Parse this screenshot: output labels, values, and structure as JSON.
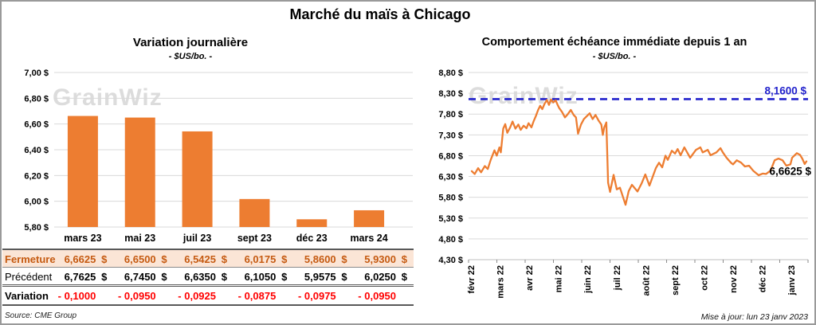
{
  "page_title": "Marché du maïs à Chicago",
  "watermark": "GrainWiz",
  "source": "Source: CME Group",
  "updated": "Mise à jour: lun 23 janv 2023",
  "colors": {
    "orange": "#ED7D31",
    "ref_blue": "#2222CC",
    "close_row_bg": "#FBE5D6",
    "close_row_text": "#C55A11",
    "variation_red": "#FF0000",
    "gridline": "#D9D9D9"
  },
  "left_chart": {
    "title": "Variation journalière",
    "subtitle": "- $US/bo. -",
    "table": {
      "rows": [
        {
          "key": "fermeture",
          "label": "Fermeture",
          "values": [
            "6,6625",
            "6,6500",
            "6,5425",
            "6,0175",
            "5,8600",
            "5,9300"
          ],
          "suffix": "$"
        },
        {
          "key": "precedent",
          "label": "Précédent",
          "values": [
            "6,7625",
            "6,7450",
            "6,6350",
            "6,1050",
            "5,9575",
            "6,0250"
          ],
          "suffix": "$"
        },
        {
          "key": "variation",
          "label": "Variation",
          "values": [
            "- 0,1000",
            "- 0,0950",
            "- 0,0925",
            "- 0,0875",
            "- 0,0975",
            "- 0,0950"
          ],
          "suffix": ""
        }
      ]
    }
  },
  "right_chart": {
    "title": "Comportement échéance immédiate depuis 1 an",
    "subtitle": "- $US/bo. -",
    "ref_line_label": "8,1600 $",
    "last_label": "6,6625 $"
  },
  "chart_data": [
    {
      "type": "bar",
      "title": "Variation journalière",
      "ylabel": "$US/bo.",
      "categories": [
        "mars 23",
        "mai 23",
        "juil 23",
        "sept 23",
        "déc 23",
        "mars 24"
      ],
      "values": [
        6.6625,
        6.65,
        6.5425,
        6.0175,
        5.86,
        5.93
      ],
      "ylim": [
        5.8,
        7.0
      ],
      "ytick_step": 0.2,
      "ytick_labels": [
        "7,00 $",
        "6,80 $",
        "6,60 $",
        "6,40 $",
        "6,20 $",
        "6,00 $",
        "5,80 $"
      ],
      "grid": true,
      "bar_color": "#ED7D31"
    },
    {
      "type": "line",
      "title": "Comportement échéance immédiate depuis 1 an",
      "ylabel": "$US/bo.",
      "x_tick_labels": [
        "févr 22",
        "mars 22",
        "avr 22",
        "mai 22",
        "juin 22",
        "juil 22",
        "août 22",
        "sept 22",
        "oct 22",
        "nov 22",
        "déc 22",
        "janv 23"
      ],
      "ylim": [
        4.3,
        8.8
      ],
      "ytick_step": 0.5,
      "ytick_labels": [
        "8,80 $",
        "8,30 $",
        "7,80 $",
        "7,30 $",
        "6,80 $",
        "6,30 $",
        "5,80 $",
        "5,30 $",
        "4,80 $",
        "4,30 $"
      ],
      "grid": true,
      "line_color": "#ED7D31",
      "ref_line": {
        "value": 8.16,
        "label": "8,1600 $",
        "color": "#2222CC",
        "style": "dashed"
      },
      "last_value": {
        "value": 6.6625,
        "label": "6,6625 $"
      },
      "series": [
        {
          "name": "échéance immédiate",
          "points": [
            [
              0,
              6.43
            ],
            [
              0.1,
              6.36
            ],
            [
              0.22,
              6.5
            ],
            [
              0.32,
              6.4
            ],
            [
              0.45,
              6.55
            ],
            [
              0.55,
              6.48
            ],
            [
              0.65,
              6.7
            ],
            [
              0.78,
              6.93
            ],
            [
              0.86,
              6.8
            ],
            [
              0.95,
              7.0
            ],
            [
              1.0,
              6.88
            ],
            [
              1.08,
              7.45
            ],
            [
              1.15,
              7.56
            ],
            [
              1.22,
              7.35
            ],
            [
              1.32,
              7.48
            ],
            [
              1.4,
              7.62
            ],
            [
              1.5,
              7.45
            ],
            [
              1.6,
              7.55
            ],
            [
              1.68,
              7.42
            ],
            [
              1.78,
              7.52
            ],
            [
              1.88,
              7.46
            ],
            [
              1.95,
              7.58
            ],
            [
              2.05,
              7.48
            ],
            [
              2.12,
              7.62
            ],
            [
              2.2,
              7.75
            ],
            [
              2.28,
              7.9
            ],
            [
              2.35,
              8.0
            ],
            [
              2.42,
              7.92
            ],
            [
              2.5,
              8.05
            ],
            [
              2.58,
              8.14
            ],
            [
              2.65,
              8.02
            ],
            [
              2.72,
              8.15
            ],
            [
              2.8,
              8.08
            ],
            [
              2.88,
              8.13
            ],
            [
              2.95,
              8.02
            ],
            [
              3.0,
              7.95
            ],
            [
              3.1,
              7.85
            ],
            [
              3.2,
              7.72
            ],
            [
              3.3,
              7.8
            ],
            [
              3.4,
              7.9
            ],
            [
              3.5,
              7.78
            ],
            [
              3.58,
              7.72
            ],
            [
              3.65,
              7.33
            ],
            [
              3.75,
              7.55
            ],
            [
              3.85,
              7.68
            ],
            [
              3.95,
              7.75
            ],
            [
              4.05,
              7.82
            ],
            [
              4.15,
              7.68
            ],
            [
              4.25,
              7.78
            ],
            [
              4.35,
              7.65
            ],
            [
              4.45,
              7.55
            ],
            [
              4.5,
              7.3
            ],
            [
              4.55,
              7.48
            ],
            [
              4.62,
              7.6
            ],
            [
              4.68,
              6.15
            ],
            [
              4.75,
              5.93
            ],
            [
              4.87,
              6.34
            ],
            [
              4.98,
              5.99
            ],
            [
              5.09,
              6.03
            ],
            [
              5.28,
              5.62
            ],
            [
              5.39,
              5.95
            ],
            [
              5.5,
              6.1
            ],
            [
              5.69,
              5.94
            ],
            [
              5.83,
              6.13
            ],
            [
              5.96,
              6.35
            ],
            [
              6.1,
              6.08
            ],
            [
              6.32,
              6.5
            ],
            [
              6.43,
              6.63
            ],
            [
              6.54,
              6.52
            ],
            [
              6.65,
              6.8
            ],
            [
              6.73,
              6.7
            ],
            [
              6.87,
              6.92
            ],
            [
              6.98,
              6.85
            ],
            [
              7.07,
              6.96
            ],
            [
              7.17,
              6.81
            ],
            [
              7.3,
              7.0
            ],
            [
              7.5,
              6.75
            ],
            [
              7.7,
              6.94
            ],
            [
              7.85,
              7.0
            ],
            [
              7.93,
              6.88
            ],
            [
              8.1,
              6.94
            ],
            [
              8.2,
              6.81
            ],
            [
              8.4,
              6.88
            ],
            [
              8.54,
              6.98
            ],
            [
              8.62,
              6.88
            ],
            [
              8.75,
              6.75
            ],
            [
              8.9,
              6.63
            ],
            [
              8.97,
              6.59
            ],
            [
              9.1,
              6.69
            ],
            [
              9.25,
              6.63
            ],
            [
              9.38,
              6.54
            ],
            [
              9.52,
              6.56
            ],
            [
              9.66,
              6.44
            ],
            [
              9.85,
              6.33
            ],
            [
              9.99,
              6.37
            ],
            [
              10.1,
              6.36
            ],
            [
              10.26,
              6.44
            ],
            [
              10.4,
              6.69
            ],
            [
              10.53,
              6.73
            ],
            [
              10.67,
              6.69
            ],
            [
              10.8,
              6.56
            ],
            [
              10.94,
              6.59
            ],
            [
              11.0,
              6.75
            ],
            [
              11.16,
              6.86
            ],
            [
              11.27,
              6.82
            ],
            [
              11.35,
              6.73
            ],
            [
              11.43,
              6.6
            ],
            [
              11.49,
              6.6625
            ]
          ]
        }
      ]
    }
  ]
}
